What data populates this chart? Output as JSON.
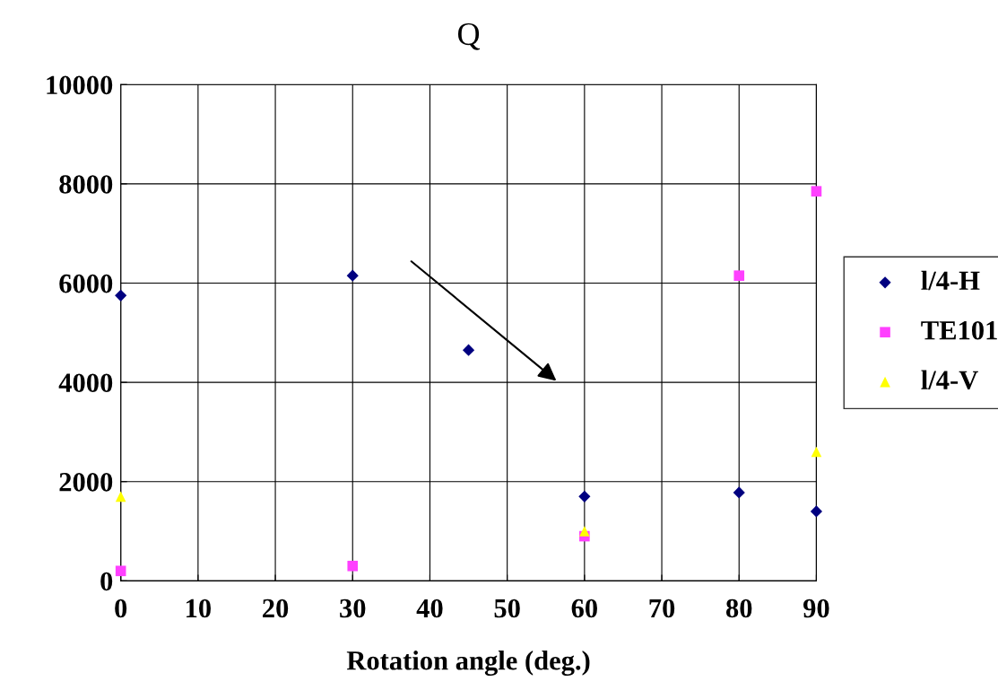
{
  "chart_data": {
    "type": "scatter",
    "title": "Q",
    "xlabel": "Rotation angle (deg.)",
    "series": [
      {
        "name": "l/4-H",
        "color": "#000080",
        "marker": "diamond",
        "x": [
          0,
          30,
          45,
          60,
          80,
          90
        ],
        "values": [
          5750,
          6150,
          4650,
          1700,
          1780,
          1400
        ]
      },
      {
        "name": "TE101",
        "color": "#ff40ff",
        "marker": "square",
        "x": [
          0,
          30,
          60,
          80,
          90
        ],
        "values": [
          200,
          300,
          900,
          6150,
          7850
        ]
      },
      {
        "name": "l/4-V",
        "color": "#ffff00",
        "marker": "triangle",
        "x": [
          0,
          60,
          90
        ],
        "values": [
          1700,
          1000,
          2600
        ]
      }
    ],
    "xlim": [
      0,
      90
    ],
    "xticks": [
      0,
      10,
      20,
      30,
      40,
      50,
      60,
      70,
      80,
      90
    ],
    "ylim": [
      0,
      10000
    ],
    "yticks": [
      0,
      2000,
      4000,
      6000,
      8000,
      10000
    ],
    "grid": true,
    "legend": "right"
  }
}
